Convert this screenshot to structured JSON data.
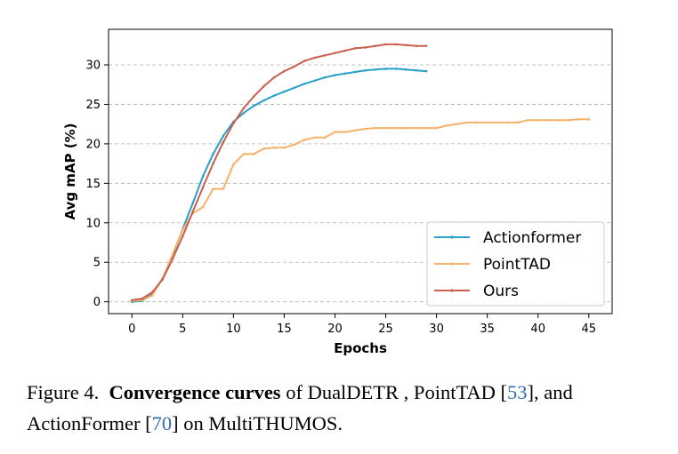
{
  "chart_data": {
    "type": "line",
    "title": "",
    "xlabel": "Epochs",
    "ylabel": "Avg mAP (%)",
    "xlim": [
      -2.3,
      47.3
    ],
    "ylim": [
      -1.5,
      34.5
    ],
    "xticks": [
      0,
      5,
      10,
      15,
      20,
      25,
      30,
      35,
      40,
      45
    ],
    "yticks": [
      0,
      5,
      10,
      15,
      20,
      25,
      30
    ],
    "grid": "horizontal dashed",
    "legend_position": "bottom-right",
    "series": [
      {
        "name": "Actionformer",
        "color": "#2a9fc9",
        "x": [
          0,
          1,
          2,
          3,
          4,
          5,
          6,
          7,
          8,
          9,
          10,
          11,
          12,
          13,
          14,
          15,
          16,
          17,
          18,
          19,
          20,
          21,
          22,
          23,
          24,
          25,
          26,
          27,
          28,
          29
        ],
        "y": [
          0.0,
          0.1,
          1.0,
          2.9,
          5.8,
          9.2,
          12.5,
          15.9,
          18.7,
          21.0,
          22.8,
          23.9,
          24.8,
          25.5,
          26.1,
          26.6,
          27.1,
          27.6,
          28.0,
          28.4,
          28.7,
          28.9,
          29.1,
          29.3,
          29.4,
          29.5,
          29.5,
          29.4,
          29.3,
          29.2
        ]
      },
      {
        "name": "PointTAD",
        "color": "#f5b26b",
        "x": [
          0,
          1,
          2,
          3,
          4,
          5,
          6,
          7,
          8,
          9,
          10,
          11,
          12,
          13,
          14,
          15,
          16,
          17,
          18,
          19,
          20,
          21,
          22,
          23,
          24,
          25,
          26,
          27,
          28,
          29,
          30,
          31,
          32,
          33,
          34,
          35,
          36,
          37,
          38,
          39,
          40,
          41,
          42,
          43,
          44,
          45
        ],
        "y": [
          0.1,
          0.2,
          0.8,
          2.9,
          6.0,
          9.1,
          11.2,
          12.0,
          14.3,
          14.3,
          17.4,
          18.7,
          18.7,
          19.4,
          19.5,
          19.5,
          19.9,
          20.5,
          20.8,
          20.8,
          21.5,
          21.5,
          21.7,
          21.9,
          22.0,
          22.0,
          22.0,
          22.0,
          22.0,
          22.0,
          22.0,
          22.3,
          22.5,
          22.7,
          22.7,
          22.7,
          22.7,
          22.7,
          22.7,
          23.0,
          23.0,
          23.0,
          23.0,
          23.0,
          23.1,
          23.1
        ]
      },
      {
        "name": "Ours",
        "color": "#c7604f",
        "x": [
          0,
          1,
          2,
          3,
          4,
          5,
          6,
          7,
          8,
          9,
          10,
          11,
          12,
          13,
          14,
          15,
          16,
          17,
          18,
          19,
          20,
          21,
          22,
          23,
          24,
          25,
          26,
          27,
          28,
          29
        ],
        "y": [
          0.2,
          0.4,
          1.2,
          2.8,
          5.4,
          8.3,
          11.4,
          14.5,
          17.5,
          20.2,
          22.6,
          24.5,
          26.0,
          27.3,
          28.4,
          29.2,
          29.8,
          30.5,
          30.9,
          31.2,
          31.5,
          31.8,
          32.1,
          32.2,
          32.4,
          32.6,
          32.6,
          32.5,
          32.4,
          32.4
        ]
      }
    ]
  },
  "caption": {
    "figure_label": "Figure 4.",
    "bold_phrase": "Convergence curves",
    "text_1": " of DualDETR , PointTAD [",
    "ref_1": "53",
    "text_2": "], and ActionFormer [",
    "ref_2": "70",
    "text_3": "] on MultiTHUMOS."
  }
}
